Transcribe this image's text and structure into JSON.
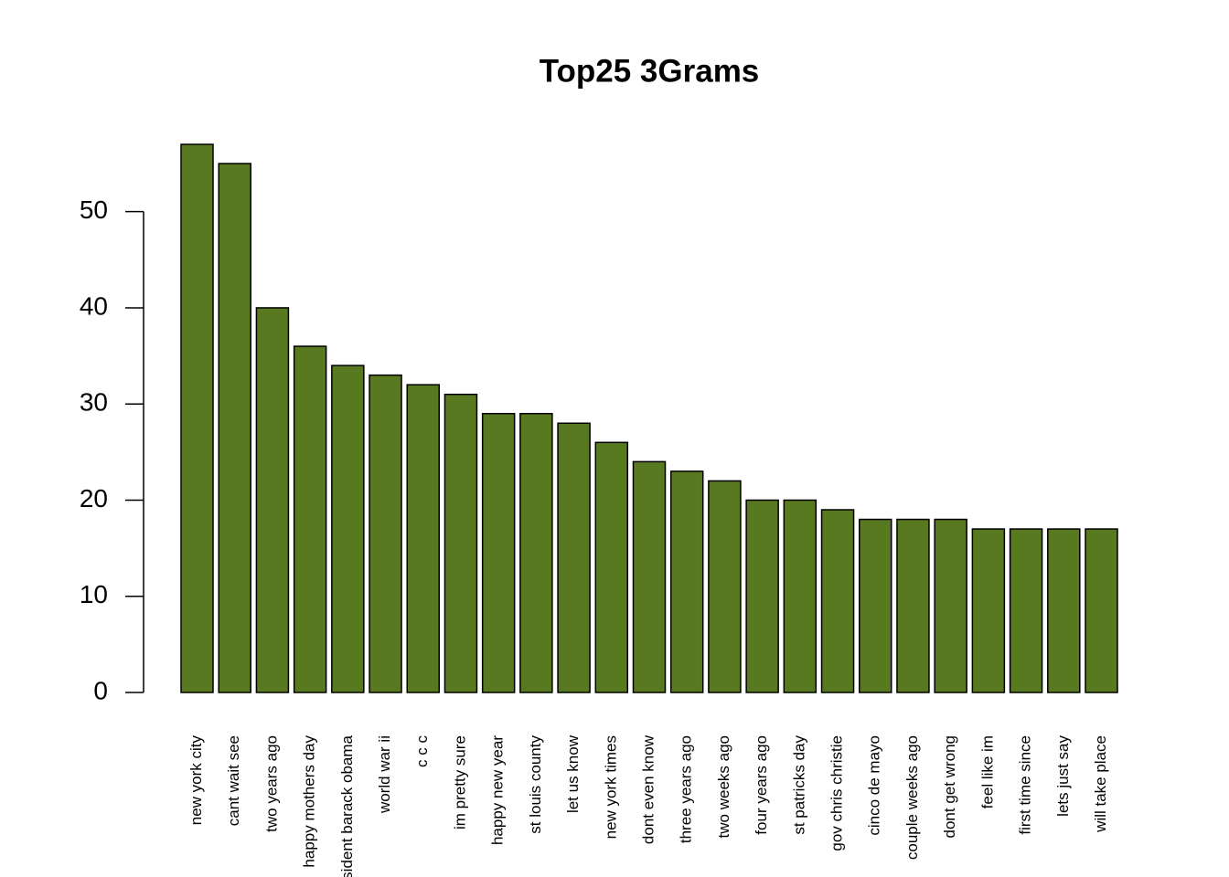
{
  "chart_data": {
    "type": "bar",
    "title": "Top25 3Grams",
    "categories": [
      "new york city",
      "cant wait see",
      "two years ago",
      "happy mothers day",
      "president barack obama",
      "world war ii",
      "c c c",
      "im pretty sure",
      "happy new year",
      "st louis county",
      "let us know",
      "new york times",
      "dont even know",
      "three years ago",
      "two weeks ago",
      "four years ago",
      "st patricks day",
      "gov chris christie",
      "cinco de mayo",
      "couple weeks ago",
      "dont get wrong",
      "feel like im",
      "first time since",
      "lets just say",
      "will take place"
    ],
    "values": [
      57,
      55,
      40,
      36,
      34,
      33,
      32,
      31,
      29,
      29,
      28,
      26,
      24,
      23,
      22,
      20,
      20,
      19,
      18,
      18,
      18,
      17,
      17,
      17,
      17
    ],
    "color": "#58791f",
    "ylim": [
      0,
      57
    ],
    "yticks": [
      0,
      10,
      20,
      30,
      40,
      50
    ],
    "grid": false
  }
}
